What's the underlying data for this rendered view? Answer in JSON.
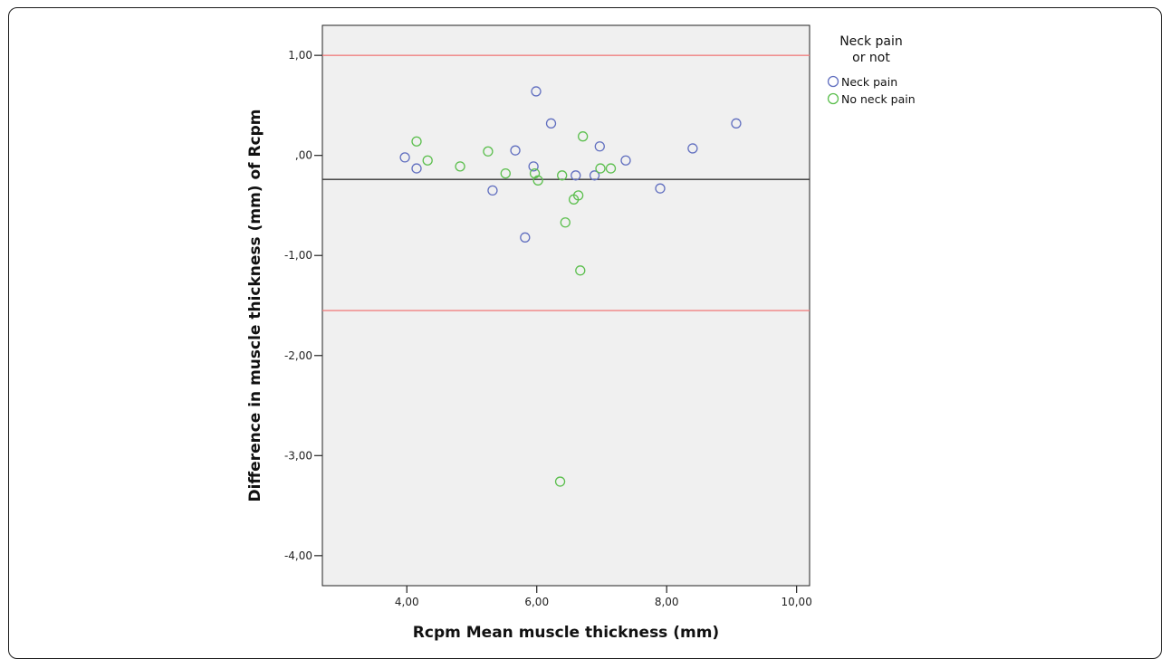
{
  "chart_data": {
    "type": "scatter",
    "title": "",
    "xlabel": "Rcpm Mean muscle thickness (mm)",
    "ylabel": "Difference in muscle thickness (mm) of Rcpm",
    "xlim": [
      2.7,
      10.2
    ],
    "ylim": [
      -4.3,
      1.3
    ],
    "x_ticks": [
      4,
      6,
      8,
      10
    ],
    "y_ticks": [
      1,
      0,
      -1,
      -2,
      -3,
      -4
    ],
    "x_tick_labels": [
      "4,00",
      "6,00",
      "8,00",
      "10,00"
    ],
    "y_tick_labels": [
      "1,00",
      ",00",
      "-1,00",
      "-2,00",
      "-3,00",
      "-4,00"
    ],
    "grid": false,
    "legend": {
      "title_line1": "Neck pain",
      "title_line2": "or not",
      "placement": "right"
    },
    "reference_lines": [
      {
        "name": "upper limit",
        "y": 1.0,
        "color": "#f08080"
      },
      {
        "name": "mean difference",
        "y": -0.24,
        "color": "#333333"
      },
      {
        "name": "lower limit",
        "y": -1.55,
        "color": "#f08080"
      }
    ],
    "series": [
      {
        "name": "Neck pain",
        "color": "#6270c0",
        "points": [
          [
            3.97,
            -0.02
          ],
          [
            4.15,
            -0.13
          ],
          [
            5.32,
            -0.35
          ],
          [
            5.67,
            0.05
          ],
          [
            5.82,
            -0.82
          ],
          [
            5.95,
            -0.11
          ],
          [
            5.99,
            0.64
          ],
          [
            6.22,
            0.32
          ],
          [
            6.6,
            -0.2
          ],
          [
            6.89,
            -0.2
          ],
          [
            6.97,
            0.09
          ],
          [
            7.37,
            -0.05
          ],
          [
            7.9,
            -0.33
          ],
          [
            8.4,
            0.07
          ],
          [
            9.07,
            0.32
          ]
        ]
      },
      {
        "name": "No neck pain",
        "color": "#5cbf4e",
        "points": [
          [
            4.15,
            0.14
          ],
          [
            4.32,
            -0.05
          ],
          [
            4.82,
            -0.11
          ],
          [
            5.25,
            0.04
          ],
          [
            5.52,
            -0.18
          ],
          [
            5.97,
            -0.18
          ],
          [
            6.02,
            -0.25
          ],
          [
            6.39,
            -0.2
          ],
          [
            6.44,
            -0.67
          ],
          [
            6.57,
            -0.44
          ],
          [
            6.64,
            -0.4
          ],
          [
            6.67,
            -1.15
          ],
          [
            6.71,
            0.19
          ],
          [
            6.98,
            -0.13
          ],
          [
            7.14,
            -0.13
          ],
          [
            6.36,
            -3.26
          ]
        ]
      }
    ]
  },
  "colors": {
    "plot_background": "#f0f0f0",
    "neck_pain": "#6270c0",
    "no_neck_pain": "#5cbf4e",
    "limit_line": "#f08080",
    "mean_line": "#333333"
  }
}
